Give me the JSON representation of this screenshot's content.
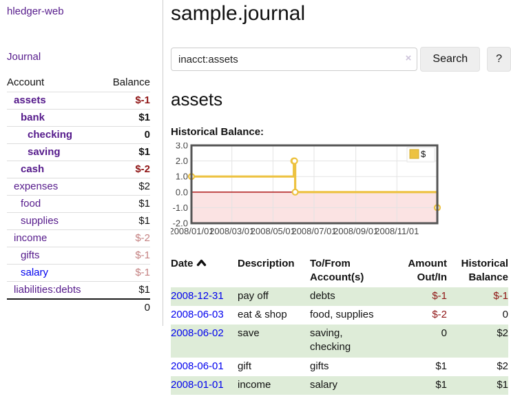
{
  "sidebar": {
    "app_title": "hledger-web",
    "journal_link": "Journal",
    "accounts_table": {
      "col_account": "Account",
      "col_balance": "Balance",
      "rows": [
        {
          "name": "assets",
          "indent": 1,
          "bold": true,
          "link_color": "purple",
          "balance": "$-1",
          "balance_class": "neg-strong"
        },
        {
          "name": "bank",
          "indent": 2,
          "bold": true,
          "link_color": "purple",
          "balance": "$1",
          "balance_class": ""
        },
        {
          "name": "checking",
          "indent": 3,
          "bold": true,
          "link_color": "purple",
          "balance": "0",
          "balance_class": ""
        },
        {
          "name": "saving",
          "indent": 3,
          "bold": true,
          "link_color": "purple",
          "balance": "$1",
          "balance_class": ""
        },
        {
          "name": "cash",
          "indent": 2,
          "bold": true,
          "link_color": "purple",
          "balance": "$-2",
          "balance_class": "neg-strong"
        },
        {
          "name": "expenses",
          "indent": 1,
          "bold": false,
          "link_color": "purple",
          "balance": "$2",
          "balance_class": ""
        },
        {
          "name": "food",
          "indent": 2,
          "bold": false,
          "link_color": "purple",
          "balance": "$1",
          "balance_class": ""
        },
        {
          "name": "supplies",
          "indent": 2,
          "bold": false,
          "link_color": "purple",
          "balance": "$1",
          "balance_class": ""
        },
        {
          "name": "income",
          "indent": 1,
          "bold": false,
          "link_color": "purple",
          "balance": "$-2",
          "balance_class": "neg-muted"
        },
        {
          "name": "gifts",
          "indent": 2,
          "bold": false,
          "link_color": "purple",
          "balance": "$-1",
          "balance_class": "neg-muted"
        },
        {
          "name": "salary",
          "indent": 2,
          "bold": false,
          "link_color": "blue",
          "balance": "$-1",
          "balance_class": "neg-muted"
        },
        {
          "name": "liabilities:debts",
          "indent": 1,
          "bold": false,
          "link_color": "purple",
          "balance": "$1",
          "balance_class": ""
        }
      ],
      "total": "0"
    }
  },
  "header": {
    "title": "sample.journal"
  },
  "search": {
    "query": "inacct:assets",
    "clear_icon": "×",
    "button_label": "Search",
    "help_label": "?"
  },
  "account_page": {
    "heading": "assets",
    "chart_title": "Historical Balance:"
  },
  "chart_data": {
    "type": "line",
    "step": true,
    "legend_position": "top-right",
    "xlim_days": [
      0,
      365
    ],
    "ylim": [
      -2,
      3
    ],
    "yticks": [
      3.0,
      2.0,
      1.0,
      0.0,
      -1.0,
      -2.0
    ],
    "xticks": [
      {
        "label": "2008/01/01",
        "day": 0
      },
      {
        "label": "2008/03/01",
        "day": 60
      },
      {
        "label": "2008/05/01",
        "day": 121
      },
      {
        "label": "2008/07/01",
        "day": 182
      },
      {
        "label": "2008/09/01",
        "day": 244
      },
      {
        "label": "2008/11/01",
        "day": 305
      }
    ],
    "series": [
      {
        "name": "$",
        "color": "#EDC240",
        "points": [
          {
            "date": "2008-01-01",
            "day": 0,
            "value": 1
          },
          {
            "date": "2008-06-01",
            "day": 152,
            "value": 2
          },
          {
            "date": "2008-06-02",
            "day": 153,
            "value": 2
          },
          {
            "date": "2008-06-03",
            "day": 154,
            "value": 0
          },
          {
            "date": "2008-12-31",
            "day": 365,
            "value": -1
          }
        ]
      }
    ],
    "colors": {
      "negative_region": "#fbe3e3",
      "zero_line": "#a40000",
      "grid": "#e3e3e3",
      "border": "#545454",
      "tick_text": "#444444"
    }
  },
  "register": {
    "columns": {
      "date": "Date",
      "description": "Description",
      "accounts": "To/From Account(s)",
      "amount": "Amount Out/In",
      "balance": "Historical Balance"
    },
    "rows": [
      {
        "date": "2008-12-31",
        "description": "pay off",
        "accounts": "debts",
        "amount": "$-1",
        "amount_neg": true,
        "balance": "$-1",
        "balance_neg": true
      },
      {
        "date": "2008-06-03",
        "description": "eat & shop",
        "accounts": "food, supplies",
        "amount": "$-2",
        "amount_neg": true,
        "balance": "0",
        "balance_neg": false
      },
      {
        "date": "2008-06-02",
        "description": "save",
        "accounts": "saving, checking",
        "amount": "0",
        "amount_neg": false,
        "balance": "$2",
        "balance_neg": false
      },
      {
        "date": "2008-06-01",
        "description": "gift",
        "accounts": "gifts",
        "amount": "$1",
        "amount_neg": false,
        "balance": "$2",
        "balance_neg": false
      },
      {
        "date": "2008-01-01",
        "description": "income",
        "accounts": "salary",
        "amount": "$1",
        "amount_neg": false,
        "balance": "$1",
        "balance_neg": false
      }
    ]
  }
}
